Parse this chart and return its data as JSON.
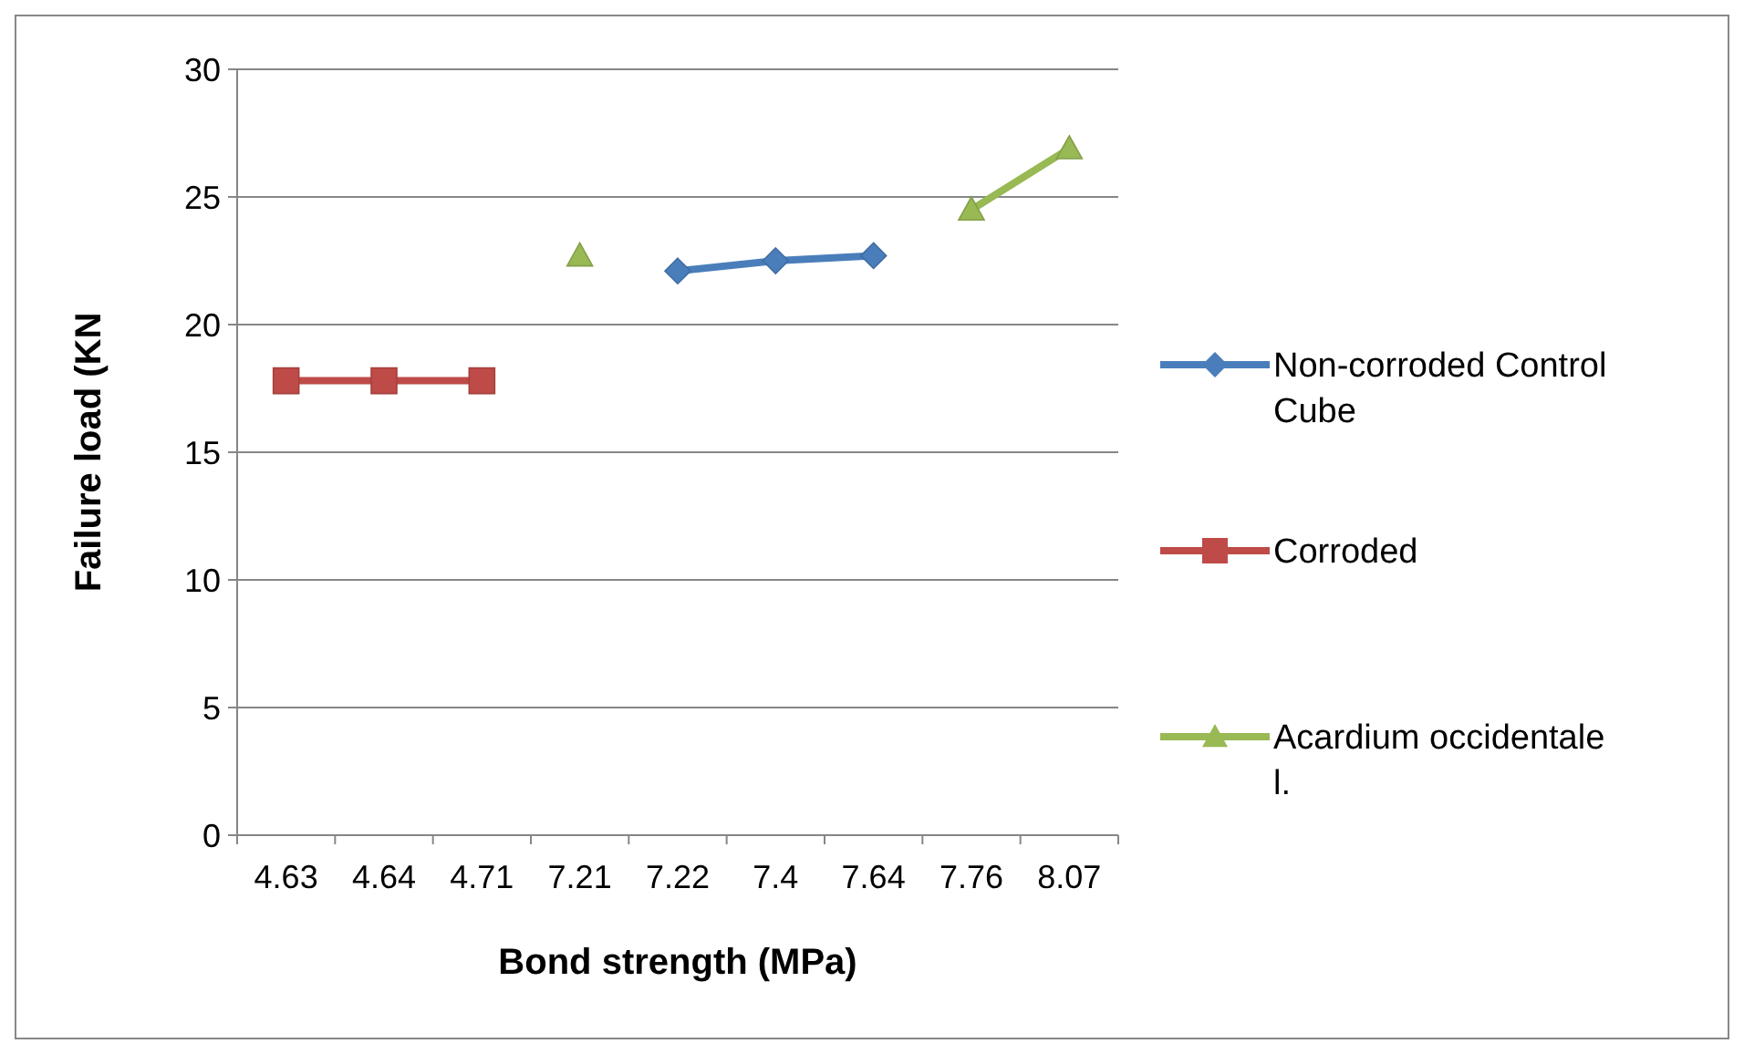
{
  "chart_data": {
    "type": "line",
    "xlabel": "Bond strength (MPa)",
    "ylabel": "Failure load (KN",
    "categories": [
      "4.63",
      "4.64",
      "4.71",
      "7.21",
      "7.22",
      "7.4",
      "7.64",
      "7.76",
      "8.07"
    ],
    "series": [
      {
        "name": "Non-corroded Control Cube",
        "color": "#4a7ebb",
        "marker": "diamond",
        "values": [
          null,
          null,
          null,
          null,
          22.1,
          22.5,
          22.7,
          null,
          null
        ]
      },
      {
        "name": "Corroded",
        "color": "#be4b48",
        "marker": "square",
        "values": [
          17.8,
          17.8,
          17.8,
          null,
          null,
          null,
          null,
          null,
          null
        ]
      },
      {
        "name": "Acardium occidentale l.",
        "color": "#98b954",
        "marker": "triangle",
        "values": [
          null,
          null,
          null,
          22.7,
          null,
          null,
          null,
          24.5,
          26.9
        ]
      }
    ],
    "ylim": [
      0,
      30
    ],
    "yticks": [
      0,
      5,
      10,
      15,
      20,
      25,
      30
    ],
    "grid": "y",
    "legend": "right",
    "line_style": "solid"
  }
}
